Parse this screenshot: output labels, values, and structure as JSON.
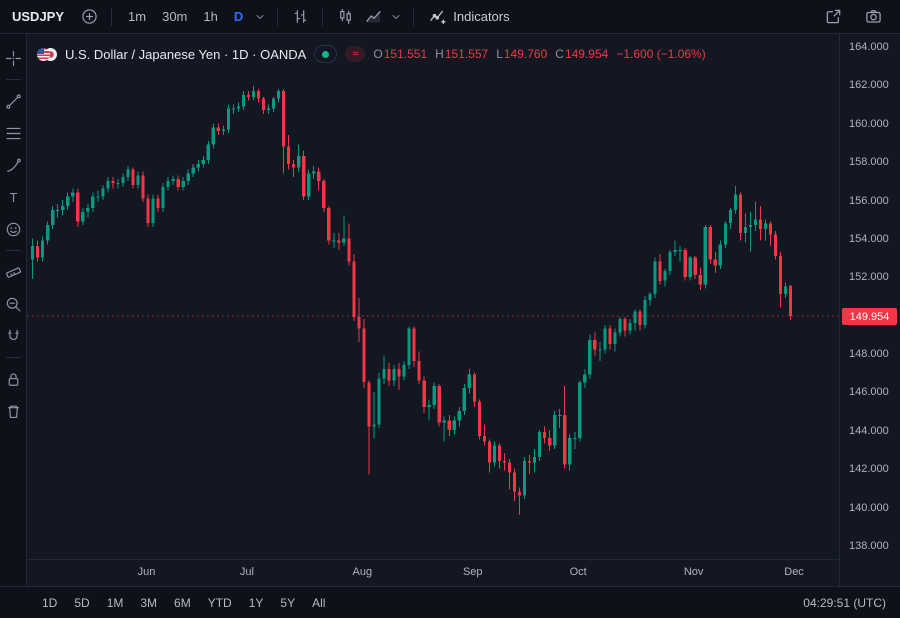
{
  "topbar": {
    "symbol": "USDJPY",
    "intervals": [
      {
        "label": "1m",
        "active": false
      },
      {
        "label": "30m",
        "active": false
      },
      {
        "label": "1h",
        "active": false
      },
      {
        "label": "D",
        "active": true
      }
    ],
    "indicators_label": "Indicators"
  },
  "legend": {
    "title": "U.S. Dollar / Japanese Yen · 1D · OANDA",
    "data_mode_symbol": "≈",
    "ohlc": {
      "o_label": "O",
      "o_value": "151.551",
      "h_label": "H",
      "h_value": "151.557",
      "l_label": "L",
      "l_value": "149.760",
      "c_label": "C",
      "c_value": "149.954",
      "change": "−1.600 (−1.06%)"
    }
  },
  "price_axis": {
    "ticks": [
      "164.000",
      "162.000",
      "160.000",
      "158.000",
      "156.000",
      "154.000",
      "152.000",
      "150.000",
      "148.000",
      "146.000",
      "144.000",
      "142.000",
      "140.000",
      "138.000"
    ],
    "last_price": "149.954"
  },
  "time_axis": {
    "months": [
      {
        "label": "Jun",
        "index": 23
      },
      {
        "label": "Jul",
        "index": 43
      },
      {
        "label": "Aug",
        "index": 66
      },
      {
        "label": "Sep",
        "index": 88
      },
      {
        "label": "Oct",
        "index": 109
      },
      {
        "label": "Nov",
        "index": 132
      },
      {
        "label": "Dec",
        "index": 152
      }
    ]
  },
  "bottombar": {
    "ranges": [
      "1D",
      "5D",
      "1M",
      "3M",
      "6M",
      "YTD",
      "1Y",
      "5Y",
      "All"
    ],
    "clock": "04:29:51 (UTC)"
  },
  "left_toolbar": {
    "tools": [
      "crosshair",
      "|",
      "trend-line",
      "fib-retracement",
      "brush",
      "text",
      "emoji",
      "|",
      "measure",
      "zoom",
      "magnet",
      "|",
      "lock",
      "trash"
    ]
  },
  "theme": {
    "background": "#131722",
    "toolbar_background": "#0e1119",
    "accent_blue": "#2f6df6",
    "up_color": "#089981",
    "down_color": "#f23645",
    "axis_text": "#b0b4bf"
  },
  "chart_data": {
    "type": "candlestick",
    "symbol": "USDJPY",
    "title": "U.S. Dollar / Japanese Yen",
    "interval": "1D",
    "source": "OANDA",
    "price_max": 164,
    "price_min": 138,
    "ylim": [
      138,
      164
    ],
    "colors": {
      "up": "#089981",
      "down": "#f23645",
      "last_price_line": "#f23645"
    },
    "last_bar": {
      "open": 151.551,
      "high": 151.557,
      "low": 149.76,
      "close": 149.954,
      "change": -1.6,
      "change_pct": -1.06
    },
    "candles": [
      [
        152.9,
        154.0,
        151.9,
        153.6
      ],
      [
        153.6,
        153.9,
        152.8,
        153.0
      ],
      [
        153.0,
        154.1,
        152.8,
        153.9
      ],
      [
        153.9,
        154.9,
        153.7,
        154.7
      ],
      [
        154.7,
        155.7,
        154.5,
        155.5
      ],
      [
        155.5,
        155.8,
        155.1,
        155.5
      ],
      [
        155.5,
        156.0,
        155.2,
        155.7
      ],
      [
        155.7,
        156.4,
        155.5,
        156.2
      ],
      [
        156.2,
        156.6,
        155.9,
        156.4
      ],
      [
        156.4,
        156.6,
        154.6,
        154.9
      ],
      [
        154.9,
        155.6,
        154.7,
        155.4
      ],
      [
        155.4,
        155.8,
        155.1,
        155.6
      ],
      [
        155.6,
        156.4,
        155.4,
        156.2
      ],
      [
        156.2,
        156.5,
        155.9,
        156.2
      ],
      [
        156.2,
        156.8,
        156.0,
        156.6
      ],
      [
        156.6,
        157.2,
        156.4,
        157.0
      ],
      [
        157.0,
        157.2,
        156.6,
        156.9
      ],
      [
        156.9,
        157.1,
        156.6,
        156.9
      ],
      [
        156.9,
        157.4,
        156.7,
        157.2
      ],
      [
        157.2,
        157.8,
        157.0,
        157.6
      ],
      [
        157.6,
        157.7,
        156.6,
        156.8
      ],
      [
        156.8,
        157.5,
        156.6,
        157.3
      ],
      [
        157.3,
        157.5,
        155.9,
        156.1
      ],
      [
        156.1,
        156.3,
        154.6,
        154.8
      ],
      [
        154.8,
        156.3,
        154.6,
        156.1
      ],
      [
        156.1,
        156.3,
        155.4,
        155.6
      ],
      [
        155.6,
        156.9,
        155.4,
        156.7
      ],
      [
        156.7,
        157.2,
        156.5,
        157.0
      ],
      [
        157.0,
        157.3,
        156.8,
        157.1
      ],
      [
        157.1,
        157.3,
        156.5,
        156.7
      ],
      [
        156.7,
        157.2,
        156.5,
        157.0
      ],
      [
        157.0,
        157.6,
        156.8,
        157.4
      ],
      [
        157.4,
        157.9,
        157.2,
        157.7
      ],
      [
        157.7,
        158.1,
        157.5,
        157.9
      ],
      [
        157.9,
        158.3,
        157.7,
        158.1
      ],
      [
        158.1,
        159.1,
        157.9,
        158.9
      ],
      [
        158.9,
        160.0,
        158.7,
        159.8
      ],
      [
        159.8,
        160.0,
        159.4,
        159.6
      ],
      [
        159.6,
        159.9,
        159.4,
        159.7
      ],
      [
        159.7,
        161.0,
        159.5,
        160.8
      ],
      [
        160.8,
        161.0,
        160.5,
        160.8
      ],
      [
        160.8,
        161.1,
        160.6,
        160.9
      ],
      [
        160.9,
        161.7,
        160.7,
        161.5
      ],
      [
        161.5,
        161.7,
        161.2,
        161.4
      ],
      [
        161.4,
        161.95,
        161.2,
        161.7
      ],
      [
        161.7,
        161.8,
        161.1,
        161.3
      ],
      [
        161.3,
        161.4,
        160.5,
        160.7
      ],
      [
        160.7,
        161.0,
        160.5,
        160.8
      ],
      [
        160.8,
        161.4,
        160.6,
        161.3
      ],
      [
        161.3,
        161.8,
        161.1,
        161.7
      ],
      [
        161.7,
        161.8,
        157.4,
        158.8
      ],
      [
        158.8,
        159.4,
        157.6,
        157.9
      ],
      [
        157.9,
        158.1,
        157.2,
        157.7
      ],
      [
        157.7,
        158.9,
        157.5,
        158.3
      ],
      [
        158.3,
        158.6,
        156.0,
        156.2
      ],
      [
        156.2,
        157.6,
        156.0,
        157.4
      ],
      [
        157.4,
        157.8,
        157.1,
        157.5
      ],
      [
        157.5,
        157.7,
        156.5,
        157.0
      ],
      [
        157.0,
        157.1,
        155.4,
        155.6
      ],
      [
        155.6,
        155.7,
        153.7,
        153.9
      ],
      [
        153.9,
        154.3,
        153.5,
        153.9
      ],
      [
        153.9,
        154.3,
        153.4,
        153.8
      ],
      [
        153.8,
        155.2,
        153.6,
        154.0
      ],
      [
        154.0,
        154.8,
        152.6,
        152.8
      ],
      [
        152.8,
        153.2,
        149.7,
        149.9
      ],
      [
        149.9,
        150.9,
        148.6,
        149.3
      ],
      [
        149.3,
        149.8,
        146.2,
        146.5
      ],
      [
        146.5,
        146.6,
        141.68,
        144.2
      ],
      [
        144.2,
        146.0,
        143.6,
        144.3
      ],
      [
        144.3,
        147.0,
        144.1,
        146.7
      ],
      [
        146.7,
        147.9,
        146.4,
        147.2
      ],
      [
        147.2,
        147.5,
        146.3,
        146.6
      ],
      [
        146.6,
        147.4,
        146.3,
        147.2
      ],
      [
        147.2,
        147.5,
        146.1,
        146.8
      ],
      [
        146.8,
        147.6,
        146.6,
        147.4
      ],
      [
        147.4,
        149.4,
        147.2,
        149.3
      ],
      [
        149.3,
        149.4,
        147.3,
        147.6
      ],
      [
        147.6,
        148.1,
        146.4,
        146.6
      ],
      [
        146.6,
        146.8,
        144.9,
        145.2
      ],
      [
        145.2,
        145.6,
        144.5,
        145.3
      ],
      [
        145.3,
        146.5,
        145.1,
        146.3
      ],
      [
        146.3,
        146.4,
        144.2,
        144.4
      ],
      [
        144.4,
        144.7,
        143.4,
        144.5
      ],
      [
        144.5,
        144.8,
        143.7,
        144.0
      ],
      [
        144.0,
        144.7,
        143.8,
        144.5
      ],
      [
        144.5,
        145.2,
        144.2,
        145.0
      ],
      [
        145.0,
        146.4,
        144.8,
        146.2
      ],
      [
        146.2,
        147.2,
        145.9,
        146.9
      ],
      [
        146.9,
        147.0,
        145.2,
        145.5
      ],
      [
        145.5,
        145.6,
        143.5,
        143.7
      ],
      [
        143.7,
        144.3,
        143.2,
        143.4
      ],
      [
        143.4,
        143.5,
        141.8,
        142.3
      ],
      [
        142.3,
        143.4,
        142.1,
        143.2
      ],
      [
        143.2,
        143.3,
        142.0,
        142.4
      ],
      [
        142.4,
        142.8,
        141.9,
        142.3
      ],
      [
        142.3,
        142.5,
        140.9,
        141.8
      ],
      [
        141.8,
        142.0,
        140.3,
        140.8
      ],
      [
        140.8,
        141.0,
        139.58,
        140.6
      ],
      [
        140.6,
        142.6,
        140.4,
        142.4
      ],
      [
        142.4,
        142.7,
        141.7,
        142.3
      ],
      [
        142.3,
        143.0,
        141.8,
        142.6
      ],
      [
        142.6,
        144.0,
        142.4,
        143.9
      ],
      [
        143.9,
        144.2,
        143.3,
        143.6
      ],
      [
        143.6,
        144.0,
        142.9,
        143.2
      ],
      [
        143.2,
        145.0,
        143.0,
        144.8
      ],
      [
        144.8,
        145.1,
        144.1,
        144.8
      ],
      [
        144.8,
        146.3,
        142.0,
        142.2
      ],
      [
        142.2,
        143.8,
        141.9,
        143.6
      ],
      [
        143.6,
        143.9,
        143.0,
        143.6
      ],
      [
        143.6,
        146.6,
        143.4,
        146.5
      ],
      [
        146.5,
        147.2,
        146.2,
        146.9
      ],
      [
        146.9,
        149.0,
        146.7,
        148.7
      ],
      [
        148.7,
        149.1,
        147.9,
        148.2
      ],
      [
        148.2,
        148.6,
        147.6,
        148.2
      ],
      [
        148.2,
        149.5,
        148.0,
        149.3
      ],
      [
        149.3,
        149.5,
        148.2,
        148.5
      ],
      [
        148.5,
        149.3,
        148.1,
        149.1
      ],
      [
        149.1,
        149.9,
        148.9,
        149.8
      ],
      [
        149.8,
        149.9,
        148.9,
        149.2
      ],
      [
        149.2,
        149.8,
        149.0,
        149.6
      ],
      [
        149.6,
        150.3,
        149.2,
        150.2
      ],
      [
        150.2,
        150.3,
        149.2,
        149.5
      ],
      [
        149.5,
        151.0,
        149.3,
        150.8
      ],
      [
        150.8,
        151.2,
        150.5,
        151.1
      ],
      [
        151.1,
        153.0,
        150.9,
        152.8
      ],
      [
        152.8,
        153.2,
        151.6,
        151.8
      ],
      [
        151.8,
        152.4,
        151.5,
        152.3
      ],
      [
        152.3,
        153.4,
        152.1,
        153.3
      ],
      [
        153.3,
        153.9,
        153.1,
        153.4
      ],
      [
        153.4,
        153.6,
        152.8,
        153.4
      ],
      [
        153.4,
        153.5,
        151.8,
        152.0
      ],
      [
        152.0,
        153.1,
        151.8,
        153.0
      ],
      [
        153.0,
        153.1,
        151.9,
        152.1
      ],
      [
        152.1,
        152.5,
        151.3,
        151.6
      ],
      [
        151.6,
        154.7,
        151.4,
        154.6
      ],
      [
        154.6,
        154.7,
        152.7,
        152.9
      ],
      [
        152.9,
        153.3,
        152.2,
        152.6
      ],
      [
        152.6,
        153.9,
        152.4,
        153.7
      ],
      [
        153.7,
        154.9,
        153.5,
        154.8
      ],
      [
        154.8,
        155.6,
        154.5,
        155.5
      ],
      [
        155.5,
        156.74,
        155.3,
        156.3
      ],
      [
        156.3,
        156.4,
        153.9,
        154.3
      ],
      [
        154.3,
        155.3,
        153.8,
        154.6
      ],
      [
        154.6,
        155.4,
        153.3,
        154.7
      ],
      [
        154.7,
        155.9,
        154.4,
        155.0
      ],
      [
        155.0,
        155.7,
        153.9,
        154.5
      ],
      [
        154.5,
        155.0,
        153.9,
        154.8
      ],
      [
        154.8,
        154.9,
        153.6,
        154.2
      ],
      [
        154.2,
        154.4,
        152.9,
        153.1
      ],
      [
        153.1,
        153.3,
        150.4,
        151.1
      ],
      [
        151.1,
        151.7,
        150.9,
        151.5
      ],
      [
        151.551,
        151.557,
        149.76,
        149.954
      ]
    ]
  }
}
